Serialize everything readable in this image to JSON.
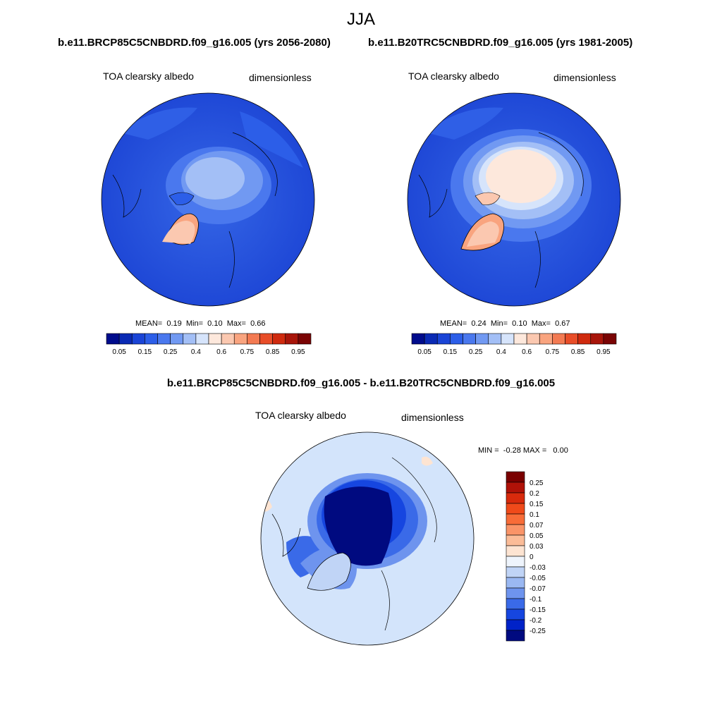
{
  "header": {
    "season": "JJA",
    "left_case": "b.e11.BRCP85C5CNBDRD.f09_g16.005 (yrs 2056-2080)",
    "right_case": "b.e11.B20TRC5CNBDRD.f09_g16.005 (yrs 1981-2005)",
    "diff_case": "b.e11.BRCP85C5CNBDRD.f09_g16.005 - b.e11.B20TRC5CNBDRD.f09_g16.005"
  },
  "panels": {
    "left": {
      "variable": "TOA clearsky albedo",
      "units": "dimensionless",
      "mean_label": "MEAN=",
      "mean": "0.19",
      "min_label": "Min=",
      "min": "0.10",
      "max_label": "Max=",
      "max": "0.66"
    },
    "right": {
      "variable": "TOA clearsky albedo",
      "units": "dimensionless",
      "mean_label": "MEAN=",
      "mean": "0.24",
      "min_label": "Min=",
      "min": "0.10",
      "max_label": "Max=",
      "max": "0.67"
    },
    "diff": {
      "variable": "TOA clearsky albedo",
      "units": "dimensionless",
      "min_label": "MIN =",
      "min": "-0.28",
      "max_label": "MAX =",
      "max": "0.00"
    }
  },
  "chart_data": [
    {
      "type": "heatmap",
      "projection": "north-polar-stereographic",
      "title": "TOA clearsky albedo",
      "units": "dimensionless",
      "case": "b.e11.BRCP85C5CNBDRD.f09_g16.005 (yrs 2056-2080)",
      "stats": {
        "mean": 0.19,
        "min": 0.1,
        "max": 0.66
      },
      "colorbar": {
        "orientation": "horizontal",
        "levels": [
          0.05,
          0.1,
          0.15,
          0.2,
          0.25,
          0.3,
          0.4,
          0.5,
          0.6,
          0.7,
          0.75,
          0.8,
          0.85,
          0.9,
          0.95
        ],
        "tick_labels": [
          "0.05",
          "0.15",
          "0.25",
          "0.4",
          "0.6",
          "0.75",
          "0.85",
          "0.95"
        ],
        "colors": [
          "#000c8c",
          "#0a2ab4",
          "#1a44d6",
          "#2c5ee8",
          "#4a78ee",
          "#7199f2",
          "#a3bff6",
          "#d6e4fb",
          "#fde8dc",
          "#fbc8b0",
          "#f9a47f",
          "#f37a52",
          "#e84d28",
          "#cf2a0e",
          "#a8150a",
          "#7a0404"
        ]
      }
    },
    {
      "type": "heatmap",
      "projection": "north-polar-stereographic",
      "title": "TOA clearsky albedo",
      "units": "dimensionless",
      "case": "b.e11.B20TRC5CNBDRD.f09_g16.005 (yrs 1981-2005)",
      "stats": {
        "mean": 0.24,
        "min": 0.1,
        "max": 0.67
      },
      "colorbar": {
        "orientation": "horizontal",
        "levels": [
          0.05,
          0.1,
          0.15,
          0.2,
          0.25,
          0.3,
          0.4,
          0.5,
          0.6,
          0.7,
          0.75,
          0.8,
          0.85,
          0.9,
          0.95
        ],
        "tick_labels": [
          "0.05",
          "0.15",
          "0.25",
          "0.4",
          "0.6",
          "0.75",
          "0.85",
          "0.95"
        ],
        "colors": [
          "#000c8c",
          "#0a2ab4",
          "#1a44d6",
          "#2c5ee8",
          "#4a78ee",
          "#7199f2",
          "#a3bff6",
          "#d6e4fb",
          "#fde8dc",
          "#fbc8b0",
          "#f9a47f",
          "#f37a52",
          "#e84d28",
          "#cf2a0e",
          "#a8150a",
          "#7a0404"
        ]
      }
    },
    {
      "type": "heatmap",
      "projection": "north-polar-stereographic",
      "title": "TOA clearsky albedo",
      "units": "dimensionless",
      "case": "b.e11.BRCP85C5CNBDRD.f09_g16.005 - b.e11.B20TRC5CNBDRD.f09_g16.005",
      "stats": {
        "min": -0.28,
        "max": 0.0
      },
      "colorbar": {
        "orientation": "vertical",
        "tick_labels": [
          "0.25",
          "0.2",
          "0.15",
          "0.1",
          "0.07",
          "0.05",
          "0.03",
          "0",
          "-0.03",
          "-0.05",
          "-0.07",
          "-0.1",
          "-0.15",
          "-0.2",
          "-0.25"
        ],
        "colors": [
          "#7a0000",
          "#b01208",
          "#d82a0c",
          "#f04a1a",
          "#f86c38",
          "#fa9468",
          "#fbbc98",
          "#fde4d2",
          "#eef4fc",
          "#c0d4f6",
          "#9ab8f2",
          "#6e94ee",
          "#3a6ae8",
          "#1646e0",
          "#0022c8",
          "#000a80"
        ]
      }
    }
  ]
}
